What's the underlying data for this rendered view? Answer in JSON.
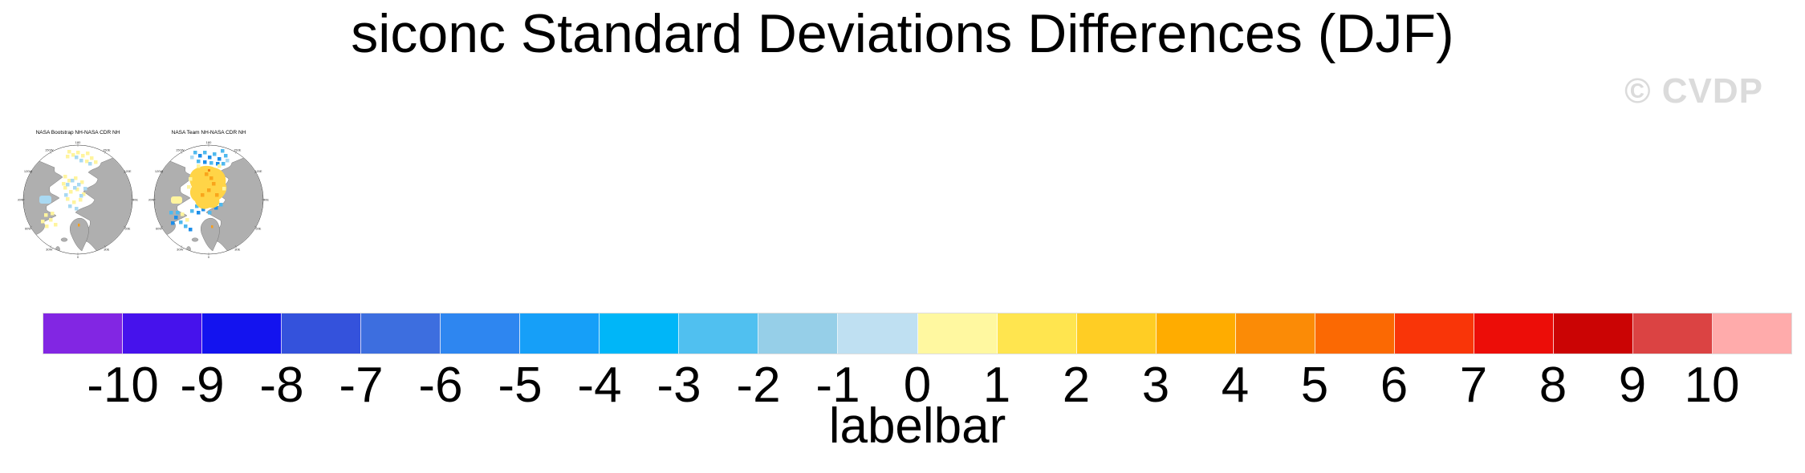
{
  "title": "siconc Standard Deviations Differences (DJF)",
  "watermark": "© CVDP",
  "maps": {
    "panels": [
      {
        "title": "NASA Bootstrap NH-NASA CDR NH"
      },
      {
        "title": "NASA Team NH-NASA CDR NH"
      }
    ],
    "ring_labels": [
      "180",
      "150E",
      "120E",
      "90E",
      "60E",
      "30E",
      "0",
      "30W",
      "60W",
      "90W",
      "120W",
      "150W"
    ],
    "land_color": "#AFAFAF",
    "ocean_color": "#FFFFFF"
  },
  "colorbar": {
    "caption": "labelbar",
    "ticks": [
      "-10",
      "-9",
      "-8",
      "-7",
      "-6",
      "-5",
      "-4",
      "-3",
      "-2",
      "-1",
      "0",
      "1",
      "2",
      "3",
      "4",
      "5",
      "6",
      "7",
      "8",
      "9",
      "10"
    ],
    "segments": [
      "#8226E3",
      "#4612EC",
      "#1313EF",
      "#3452DC",
      "#3D6EDF",
      "#2E86F0",
      "#169FF8",
      "#00B6F8",
      "#50C0F0",
      "#96CFE8",
      "#BFE0F2",
      "#FFF8A0",
      "#FFE54F",
      "#FFCD24",
      "#FFAC00",
      "#FB8B06",
      "#FB6903",
      "#F93508",
      "#EC0D08",
      "#CB0404",
      "#DB4343",
      "#FFABAB"
    ]
  },
  "chart_data": {
    "type": "heatmap",
    "title": "siconc Standard Deviations Differences (DJF)",
    "panels": [
      "NASA Bootstrap NH-NASA CDR NH",
      "NASA Team NH-NASA CDR NH"
    ],
    "projection": "northern-hemisphere polar stereographic",
    "colorbar": {
      "label": "labelbar",
      "tick_values": [
        -10,
        -9,
        -8,
        -7,
        -6,
        -5,
        -4,
        -3,
        -2,
        -1,
        0,
        1,
        2,
        3,
        4,
        5,
        6,
        7,
        8,
        9,
        10
      ],
      "range": [
        -10,
        10
      ],
      "n_segments": 22,
      "colors": [
        "#8226E3",
        "#4612EC",
        "#1313EF",
        "#3452DC",
        "#3D6EDF",
        "#2E86F0",
        "#169FF8",
        "#00B6F8",
        "#50C0F0",
        "#96CFE8",
        "#BFE0F2",
        "#FFF8A0",
        "#FFE54F",
        "#FFCD24",
        "#FFAC00",
        "#FB8B06",
        "#FB6903",
        "#F93508",
        "#EC0D08",
        "#CB0404",
        "#DB4343",
        "#FFABAB"
      ]
    },
    "legend_position": "bottom",
    "watermark": "© CVDP"
  }
}
